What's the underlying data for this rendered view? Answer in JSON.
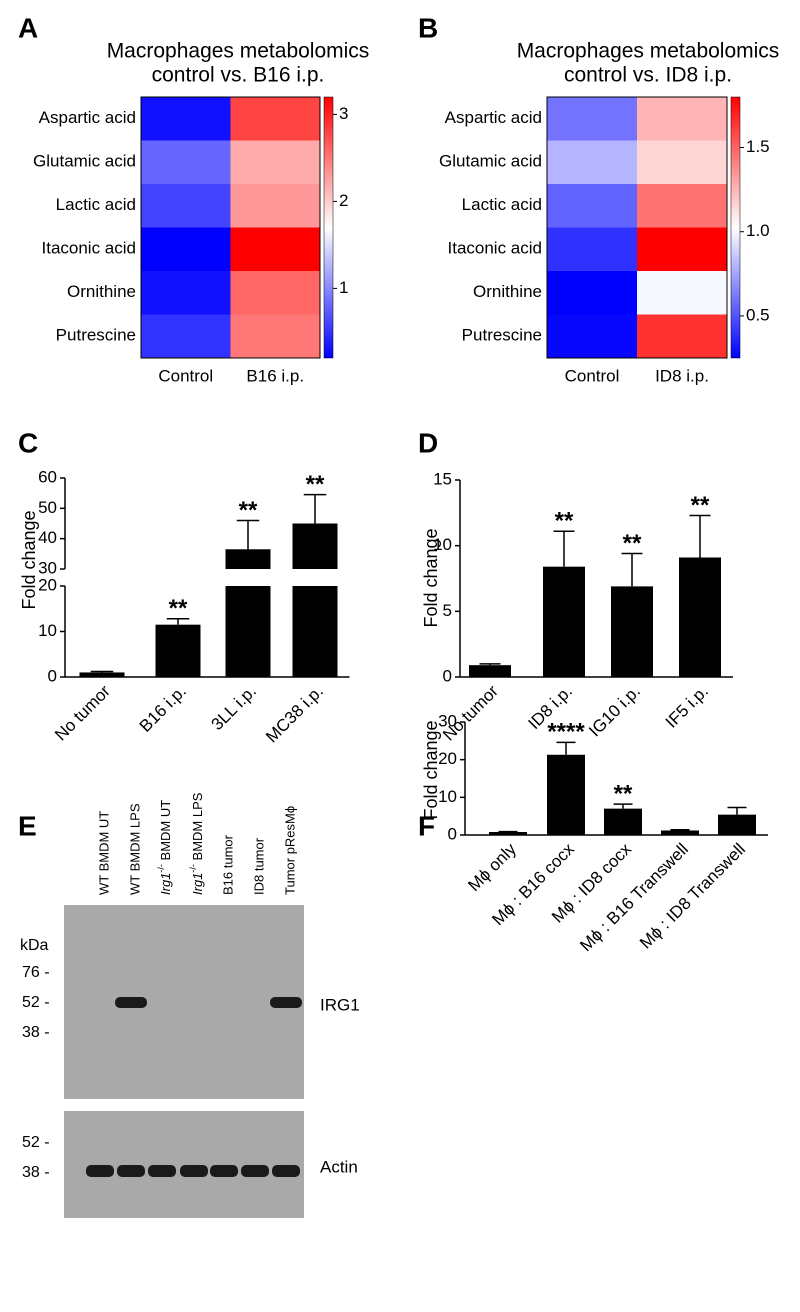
{
  "chart_data": [
    {
      "label": "A",
      "type": "heatmap",
      "title": [
        "Macrophages metabolomics",
        "control vs. B16 i.p."
      ],
      "rows": [
        "Aspartic acid",
        "Glutamic acid",
        "Lactic acid",
        "Itaconic acid",
        "Ornithine",
        "Putrescine"
      ],
      "columns": [
        "Control",
        "B16 i.p."
      ],
      "values": [
        [
          0.3,
          2.8
        ],
        [
          0.8,
          2.2
        ],
        [
          0.6,
          2.3
        ],
        [
          0.2,
          3.2
        ],
        [
          0.3,
          2.6
        ],
        [
          0.5,
          2.5
        ]
      ],
      "zlim": [
        0.2,
        3.2
      ],
      "zticks": [
        1,
        2,
        3
      ],
      "colors": [
        "#0000ff",
        "#ffffff",
        "#ff0000"
      ]
    },
    {
      "label": "B",
      "type": "heatmap",
      "title": [
        "Macrophages metabolomics",
        "control vs. ID8 i.p."
      ],
      "rows": [
        "Aspartic acid",
        "Glutamic acid",
        "Lactic acid",
        "Itaconic acid",
        "Ornithine",
        "Putrescine"
      ],
      "columns": [
        "Control",
        "ID8 i.p."
      ],
      "values": [
        [
          0.6,
          1.25
        ],
        [
          0.8,
          1.15
        ],
        [
          0.55,
          1.45
        ],
        [
          0.4,
          1.8
        ],
        [
          0.25,
          1.0
        ],
        [
          0.27,
          1.65
        ]
      ],
      "zlim": [
        0.25,
        1.8
      ],
      "zticks": [
        0.5,
        {
          "value": 1,
          "label": "1.0"
        },
        1.5
      ],
      "colors": [
        "#0000ff",
        "#ffffff",
        "#ff0000"
      ]
    },
    {
      "label": "C",
      "type": "bar",
      "ylabel": "Fold change",
      "categories": [
        "No tumor",
        "B16 i.p.",
        "3LL i.p.",
        "MC38 i.p."
      ],
      "values": [
        1,
        11.5,
        36.5,
        45
      ],
      "errors": [
        0.2,
        1.3,
        9.5,
        9.5
      ],
      "significance": [
        null,
        "**",
        "**",
        "**"
      ],
      "ylim": [
        0,
        60
      ],
      "ybreak": [
        20,
        30
      ],
      "yticks": [
        0,
        10,
        20,
        30,
        40,
        50,
        60
      ],
      "color": "#000000"
    },
    {
      "label": "D",
      "type": "bar",
      "ylabel": "Fold change",
      "categories": [
        "No tumor",
        "ID8 i.p.",
        "IG10 i.p.",
        "IF5 i.p."
      ],
      "values": [
        0.9,
        8.4,
        6.9,
        9.1
      ],
      "errors": [
        0.1,
        2.7,
        2.5,
        3.2
      ],
      "significance": [
        null,
        "**",
        "**",
        "**"
      ],
      "ylim": [
        0,
        15
      ],
      "yticks": [
        0,
        5,
        10,
        15
      ],
      "color": "#000000"
    },
    {
      "label": "F",
      "type": "bar",
      "ylabel": "Fold change",
      "categories": [
        "Mϕ only",
        "Mϕ : B16 cocx",
        "Mϕ : ID8 cocx",
        "Mϕ : B16 Transwell",
        "Mϕ : ID8 Transwell"
      ],
      "values": [
        0.8,
        21.3,
        7.0,
        1.2,
        5.4
      ],
      "errors": [
        0.1,
        3.3,
        1.2,
        0.2,
        1.9
      ],
      "significance": [
        null,
        "****",
        "**",
        null,
        null
      ],
      "ylim": [
        0,
        30
      ],
      "yticks": [
        0,
        10,
        20,
        30
      ],
      "color": "#000000"
    }
  ],
  "blot": {
    "label": "E",
    "lanes": [
      {
        "text": "WT BMDM UT"
      },
      {
        "text": "WT BMDM LPS"
      },
      {
        "gene": "Irg1",
        "superscript": "-/-",
        "text": " BMDM UT"
      },
      {
        "gene": "Irg1",
        "superscript": "-/-",
        "text": " BMDM LPS"
      },
      {
        "text": "B16 tumor"
      },
      {
        "text": "ID8 tumor"
      },
      {
        "text": "Tumor pResMϕ"
      }
    ],
    "unit": "kDa",
    "markers_top": [
      "76 -",
      "52 -",
      "38 -"
    ],
    "markers_bottom": [
      "52 -",
      "38 -"
    ],
    "protein_top": "IRG1",
    "protein_bottom": "Actin"
  }
}
